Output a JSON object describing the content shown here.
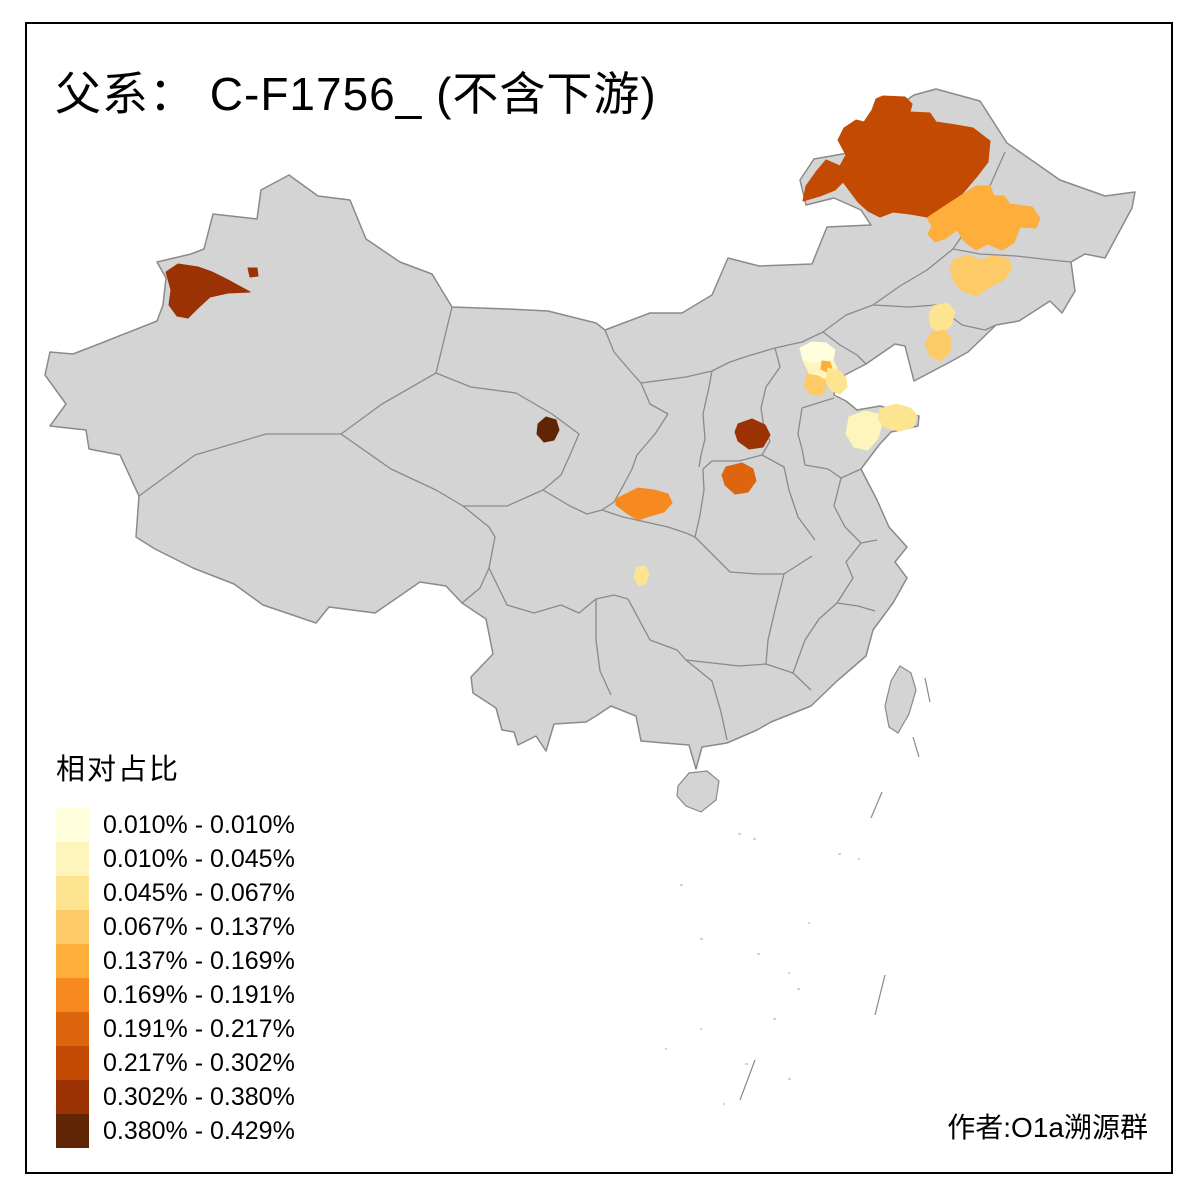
{
  "title": "父系： C-F1756_ (不含下游)",
  "legend": {
    "title": "相对占比",
    "classes": [
      {
        "label": "0.010% - 0.010%",
        "color": "#FFFFDE"
      },
      {
        "label": "0.010% - 0.045%",
        "color": "#FDF5BC"
      },
      {
        "label": "0.045% - 0.067%",
        "color": "#FDE491"
      },
      {
        "label": "0.067% - 0.137%",
        "color": "#FDCA68"
      },
      {
        "label": "0.137% - 0.169%",
        "color": "#FDAE3B"
      },
      {
        "label": "0.169% - 0.191%",
        "color": "#F68A21"
      },
      {
        "label": "0.191% - 0.217%",
        "color": "#DC650E"
      },
      {
        "label": "0.217% - 0.302%",
        "color": "#C34A03"
      },
      {
        "label": "0.302% - 0.380%",
        "color": "#9A3203"
      },
      {
        "label": "0.380% - 0.429%",
        "color": "#5F2505"
      }
    ]
  },
  "attribution": "作者:O1a溯源群",
  "map": {
    "background": "#FFFFFF",
    "base_fill": "#D4D4D4",
    "border_color": "#8A8A8A",
    "frame_color": "#000000",
    "regions": [
      {
        "name": "ili-xinjiang",
        "range": "0.302% - 0.380%",
        "class_index": 8
      },
      {
        "name": "shihezi-spot-xinjiang",
        "range": "0.302% - 0.380%",
        "class_index": 8
      },
      {
        "name": "hulunbuir-inner-mongolia",
        "range": "0.217% - 0.302%",
        "class_index": 7
      },
      {
        "name": "central-heilongjiang",
        "range": "0.137% - 0.169%",
        "class_index": 4
      },
      {
        "name": "jilin-central",
        "range": "0.067% - 0.137%",
        "class_index": 3
      },
      {
        "name": "liaoning-north",
        "range": "0.045% - 0.067%",
        "class_index": 2
      },
      {
        "name": "liaoning-central",
        "range": "0.067% - 0.137%",
        "class_index": 3
      },
      {
        "name": "beijing-northwest",
        "range": "0.010% - 0.010%",
        "class_index": 0
      },
      {
        "name": "beijing-southeast",
        "range": "0.010% - 0.045%",
        "class_index": 1
      },
      {
        "name": "beijing-city-spot",
        "range": "0.137% - 0.169%",
        "class_index": 4
      },
      {
        "name": "hebei-southwest-of-beijing",
        "range": "0.067% - 0.137%",
        "class_index": 3
      },
      {
        "name": "tianjin",
        "range": "0.045% - 0.067%",
        "class_index": 2
      },
      {
        "name": "shandong-central",
        "range": "0.010% - 0.045%",
        "class_index": 1
      },
      {
        "name": "shandong-peninsula",
        "range": "0.045% - 0.067%",
        "class_index": 2
      },
      {
        "name": "xining-qinghai",
        "range": "0.380% - 0.429%",
        "class_index": 9
      },
      {
        "name": "shanxi-central",
        "range": "0.302% - 0.380%",
        "class_index": 8
      },
      {
        "name": "shanxi-south",
        "range": "0.191% - 0.217%",
        "class_index": 6
      },
      {
        "name": "hanzhong-shaanxi",
        "range": "0.169% - 0.191%",
        "class_index": 5
      },
      {
        "name": "chongqing-west",
        "range": "0.045% - 0.067%",
        "class_index": 2
      }
    ]
  }
}
